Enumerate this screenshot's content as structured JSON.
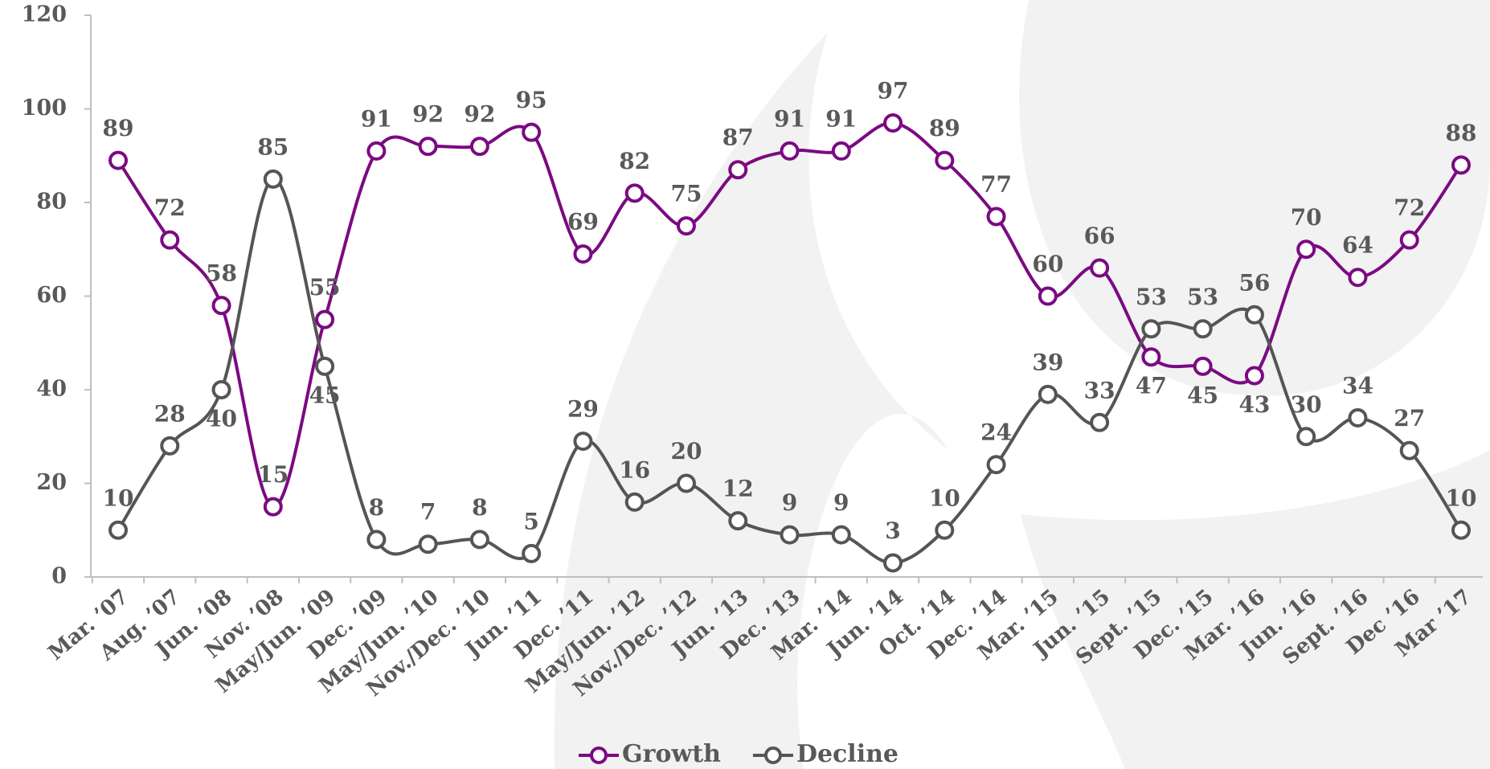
{
  "chart_data": {
    "type": "line",
    "categories": [
      "Mar. ’07",
      "Aug. ’07",
      "Jun. ’08",
      "Nov. ’08",
      "May/Jun. ’09",
      "Dec. ’09",
      "May/Jun. ’10",
      "Nov./Dec. ’10",
      "Jun. ’11",
      "Dec. ’11",
      "May/Jun. ’12",
      "Nov./Dec. ’12",
      "Jun. ’13",
      "Dec. ’13",
      "Mar. ’14",
      "Jun. ’14",
      "Oct. ’14",
      "Dec. ’14",
      "Mar. ’15",
      "Jun. ’15",
      "Sept. ’15",
      "Dec. ’15",
      "Mar. ’16",
      "Jun. ’16",
      "Sept. ’16",
      "Dec ’16",
      "Mar ’17"
    ],
    "series": [
      {
        "name": "Growth",
        "color": "#7b0a82",
        "values": [
          89,
          72,
          58,
          15,
          55,
          91,
          92,
          92,
          95,
          69,
          82,
          75,
          87,
          91,
          91,
          97,
          89,
          77,
          60,
          66,
          47,
          45,
          43,
          70,
          64,
          72,
          88
        ]
      },
      {
        "name": "Decline",
        "color": "#555555",
        "values": [
          10,
          28,
          40,
          85,
          45,
          8,
          7,
          8,
          5,
          29,
          16,
          20,
          12,
          9,
          9,
          3,
          10,
          24,
          39,
          33,
          53,
          53,
          56,
          30,
          34,
          27,
          10
        ]
      }
    ],
    "ylim": [
      0,
      120
    ],
    "yticks": [
      0,
      20,
      40,
      60,
      80,
      100,
      120
    ],
    "grid": false,
    "legend": "bottom"
  }
}
